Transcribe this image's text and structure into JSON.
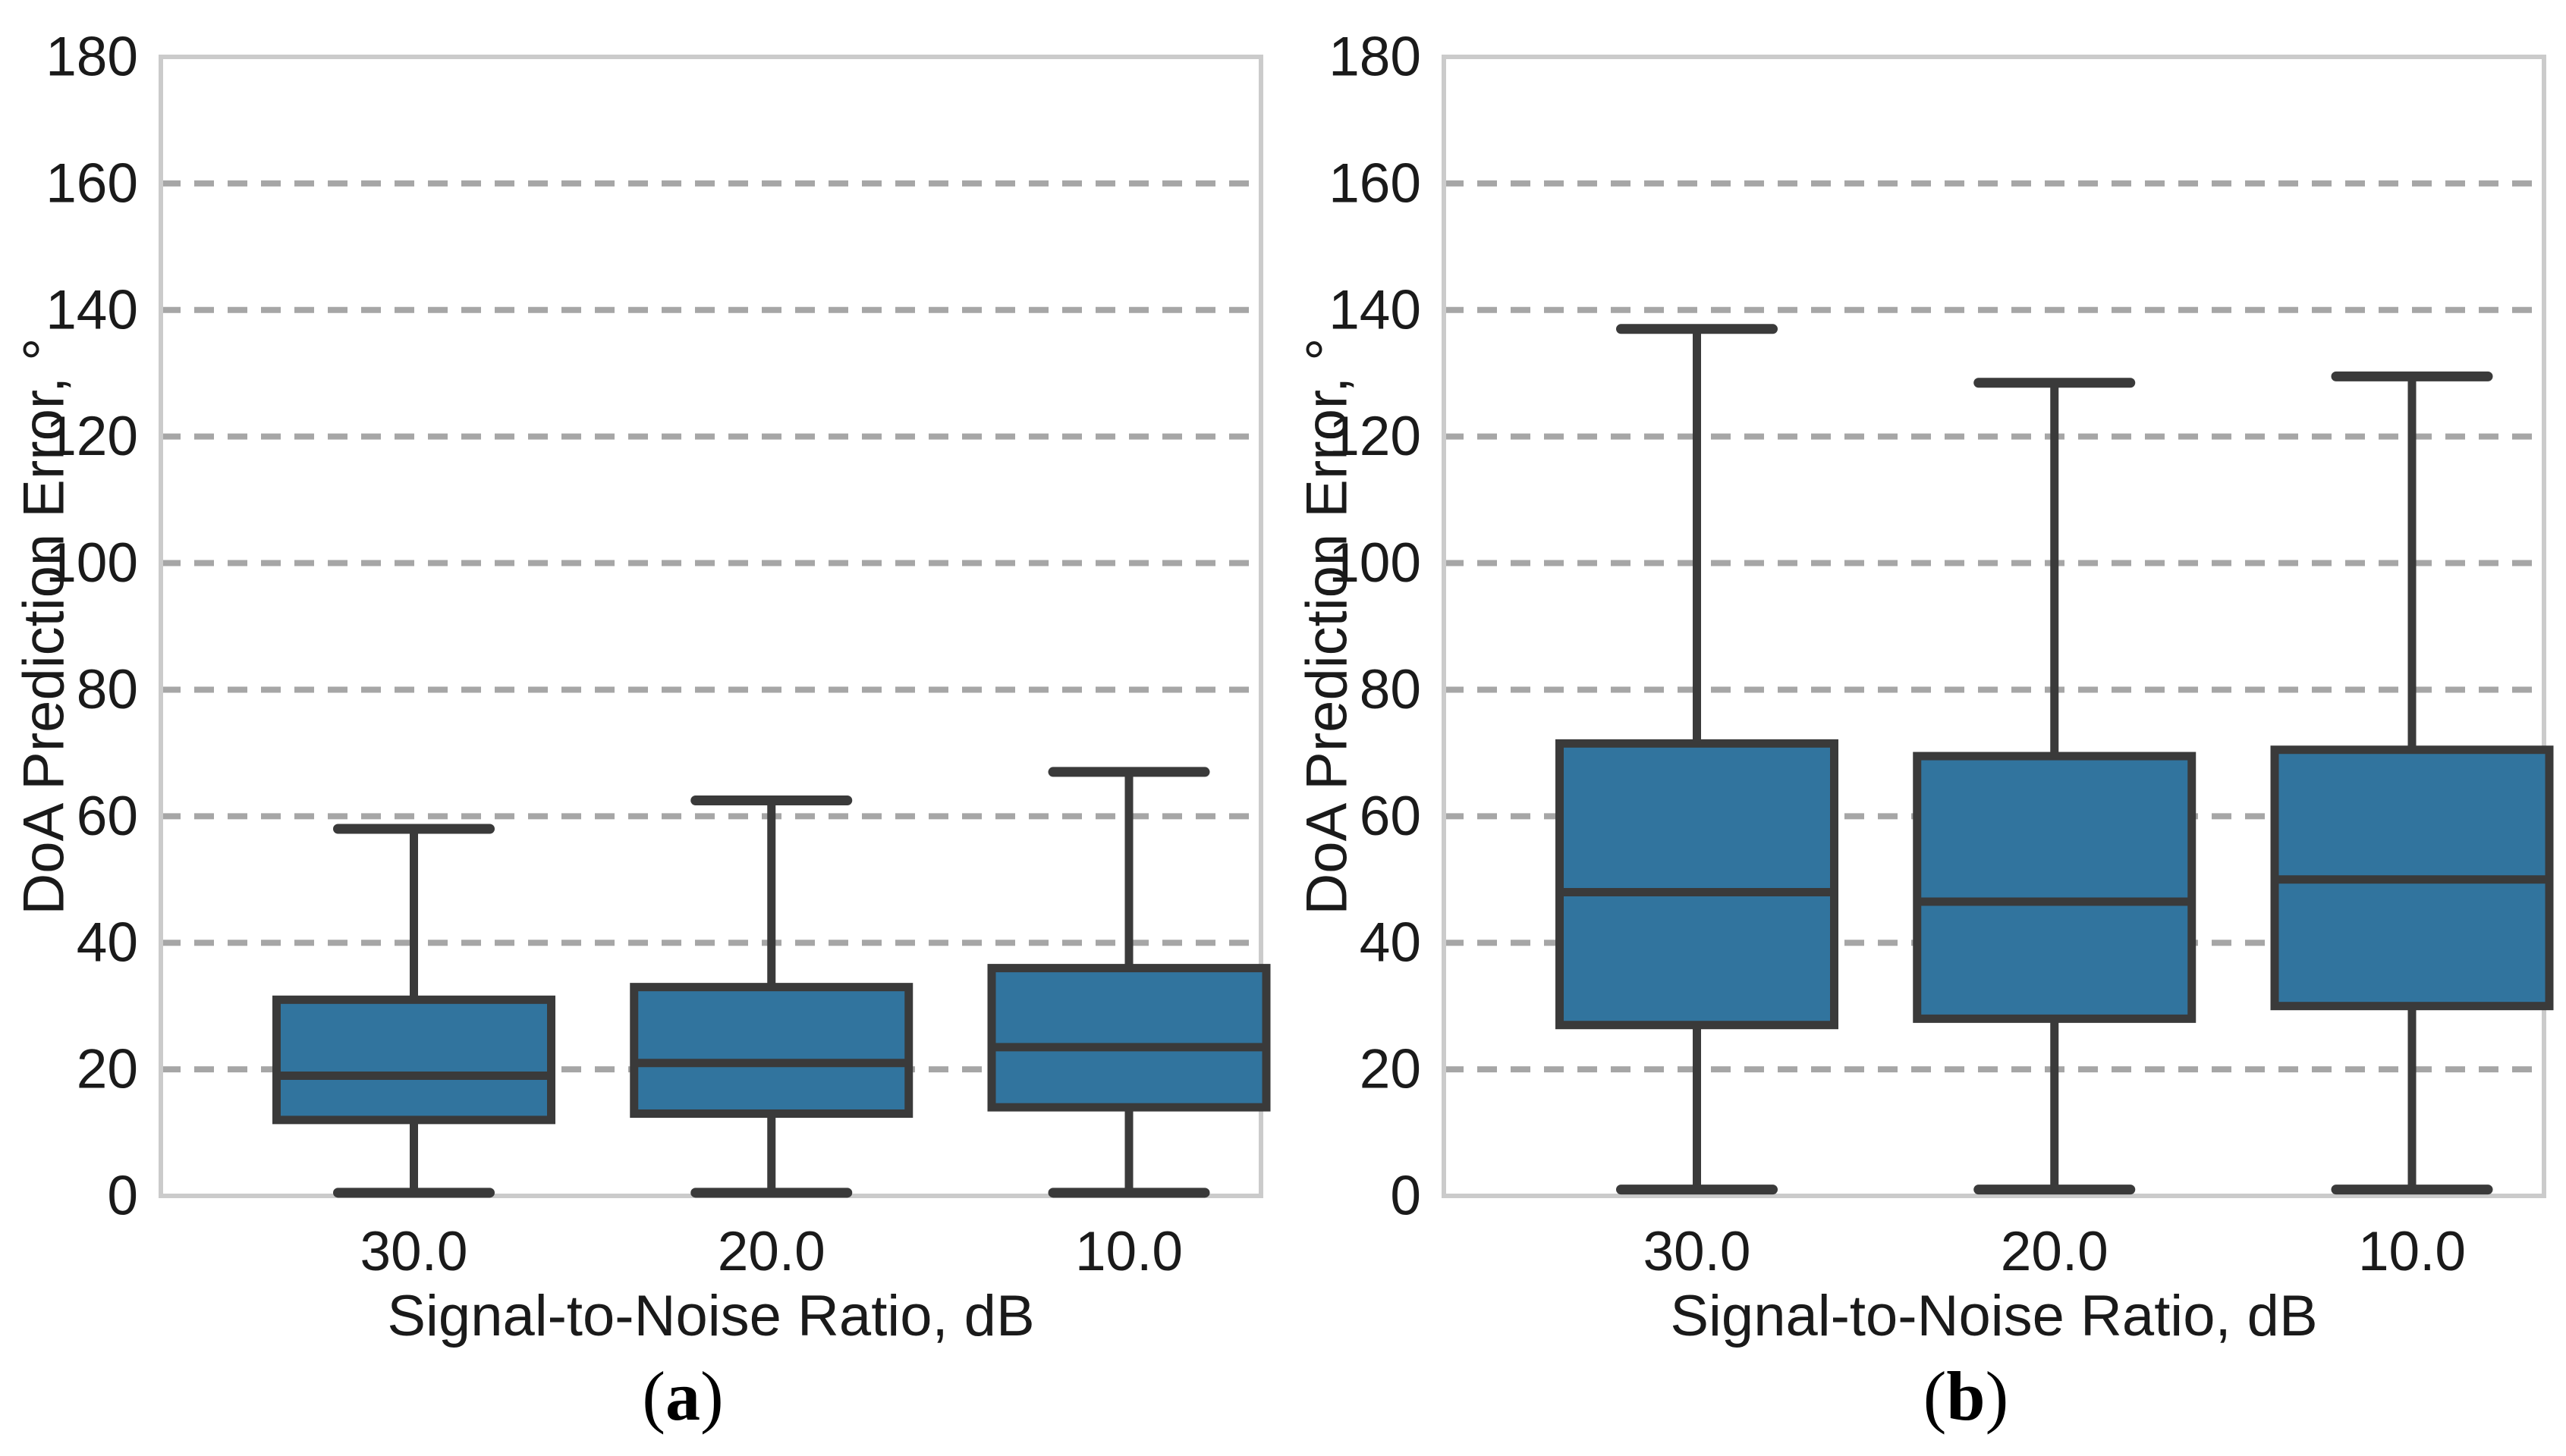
{
  "figure": {
    "background": "#FFFFFF",
    "description": "Two side-by-side box plots of DoA prediction error versus signal-to-noise ratio"
  },
  "style": {
    "box_fill": "#31749E",
    "box_edge": "#3A3A3A",
    "median_color": "#3A3A3A",
    "whisker_color": "#3A3A3A",
    "grid_color": "#A6A6A6",
    "frame_color": "#CBCBCB",
    "text_color": "#1A1A1A",
    "caption_color": "#000000"
  },
  "chart_data": [
    {
      "type": "boxplot",
      "panel": "a",
      "panel_label": {
        "open": "(",
        "letter": "a",
        "close": ")"
      },
      "xlabel": "Signal-to-Noise Ratio, dB",
      "ylabel": "DoA Prediction Error, °",
      "categories": [
        "30.0",
        "20.0",
        "10.0"
      ],
      "ylim": [
        0,
        180
      ],
      "yticks": [
        0,
        20,
        40,
        60,
        80,
        100,
        120,
        140,
        160,
        180
      ],
      "grid": "horizontal dashed at interior yticks",
      "legend": "none",
      "boxes": [
        {
          "category": "30.0",
          "whisker_low": 0.5,
          "q1": 12,
          "median": 19,
          "q3": 31,
          "whisker_high": 58
        },
        {
          "category": "20.0",
          "whisker_low": 0.5,
          "q1": 13,
          "median": 21,
          "q3": 33,
          "whisker_high": 62.5
        },
        {
          "category": "10.0",
          "whisker_low": 0.5,
          "q1": 14,
          "median": 23.5,
          "q3": 36,
          "whisker_high": 67
        }
      ]
    },
    {
      "type": "boxplot",
      "panel": "b",
      "panel_label": {
        "open": "(",
        "letter": "b",
        "close": ")"
      },
      "xlabel": "Signal-to-Noise Ratio, dB",
      "ylabel": "DoA Prediction Error, °",
      "categories": [
        "30.0",
        "20.0",
        "10.0"
      ],
      "ylim": [
        0,
        180
      ],
      "yticks": [
        0,
        20,
        40,
        60,
        80,
        100,
        120,
        140,
        160,
        180
      ],
      "grid": "horizontal dashed at interior yticks",
      "legend": "none",
      "boxes": [
        {
          "category": "30.0",
          "whisker_low": 1,
          "q1": 27,
          "median": 48,
          "q3": 71.5,
          "whisker_high": 137
        },
        {
          "category": "20.0",
          "whisker_low": 1,
          "q1": 28,
          "median": 46.5,
          "q3": 69.5,
          "whisker_high": 128.5
        },
        {
          "category": "10.0",
          "whisker_low": 1,
          "q1": 30,
          "median": 50,
          "q3": 70.5,
          "whisker_high": 129.5
        }
      ]
    }
  ]
}
